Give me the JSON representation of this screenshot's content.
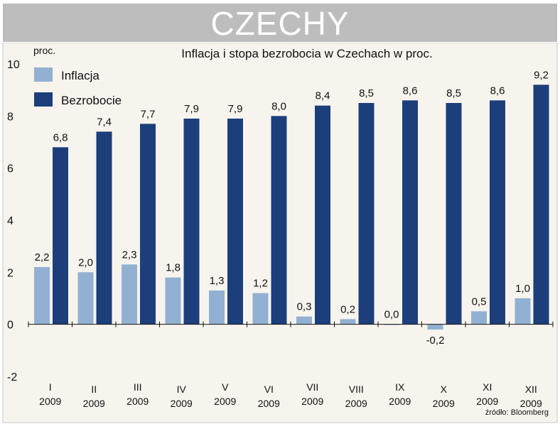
{
  "header": {
    "title": "CZECHY"
  },
  "chart_data": {
    "type": "bar",
    "title": "Inflacja i stopa bezrobocia w Czechach w proc.",
    "unit_label": "proc.",
    "source": "źródło: Bloomberg",
    "categories": [
      [
        "I",
        "2009"
      ],
      [
        "II",
        "2009"
      ],
      [
        "III",
        "2009"
      ],
      [
        "IV",
        "2009"
      ],
      [
        "V",
        "2009"
      ],
      [
        "VI",
        "2009"
      ],
      [
        "VII",
        "2009"
      ],
      [
        "VIII",
        "2009"
      ],
      [
        "IX",
        "2009"
      ],
      [
        "X",
        "2009"
      ],
      [
        "XI",
        "2009"
      ],
      [
        "XII",
        "2009"
      ]
    ],
    "series": [
      {
        "name": "Inflacja",
        "color": "#92b1d2",
        "values": [
          2.2,
          2.0,
          2.3,
          1.8,
          1.3,
          1.2,
          0.3,
          0.2,
          0.0,
          -0.2,
          0.5,
          1.0
        ],
        "labels": [
          "2,2",
          "2,0",
          "2,3",
          "1,8",
          "1,3",
          "1,2",
          "0,3",
          "0,2",
          "0,0",
          "-0,2",
          "0,5",
          "1,0"
        ]
      },
      {
        "name": "Bezrobocie",
        "color": "#1c3f7c",
        "values": [
          6.8,
          7.4,
          7.7,
          7.9,
          7.9,
          8.0,
          8.4,
          8.5,
          8.6,
          8.5,
          8.6,
          9.2
        ],
        "labels": [
          "6,8",
          "7,4",
          "7,7",
          "7,9",
          "7,9",
          "8,0",
          "8,4",
          "8,5",
          "8,6",
          "8,5",
          "8,6",
          "9,2"
        ]
      }
    ],
    "yticks": [
      -2,
      0,
      2,
      4,
      6,
      8,
      10
    ],
    "ylim": [
      -2,
      10
    ],
    "grid": false,
    "legend": "top-left",
    "background": "#f7f4ed"
  }
}
